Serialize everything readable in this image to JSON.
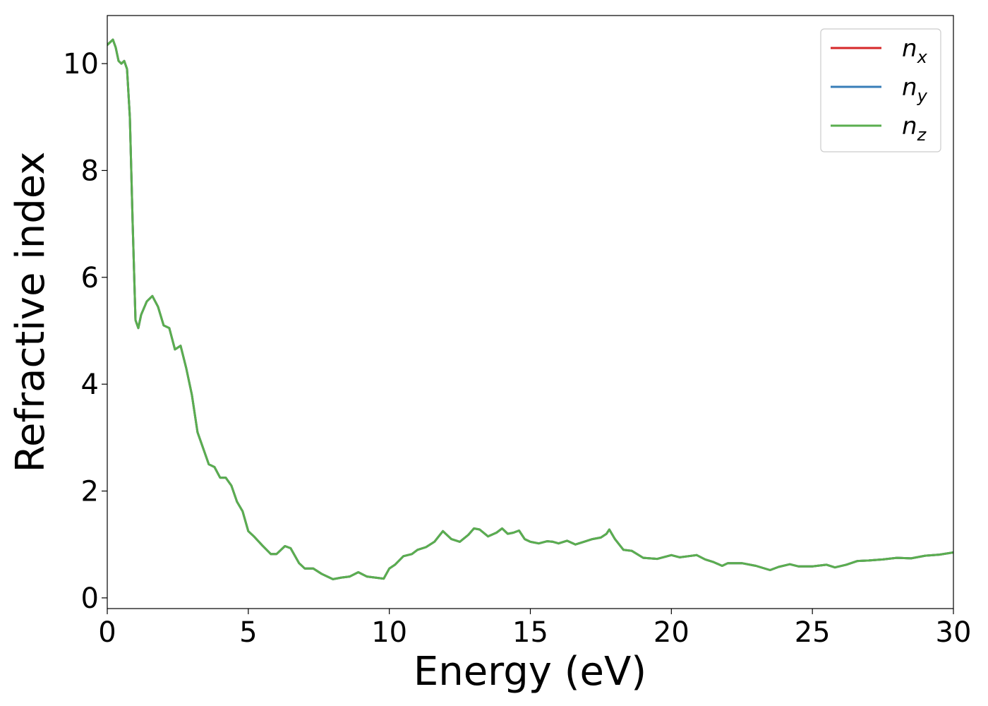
{
  "chart_data": {
    "type": "line",
    "title": "",
    "xlabel": "Energy (eV)",
    "ylabel": "Refractive index",
    "xlim": [
      0,
      30
    ],
    "ylim": [
      -0.2,
      10.9
    ],
    "xticks": [
      0,
      5,
      10,
      15,
      20,
      25,
      30
    ],
    "xtick_labels": [
      "0",
      "5",
      "10",
      "15",
      "20",
      "25",
      "30"
    ],
    "yticks": [
      0,
      2,
      4,
      6,
      8,
      10
    ],
    "ytick_labels": [
      "0",
      "2",
      "4",
      "6",
      "8",
      "10"
    ],
    "grid": false,
    "legend_position": "top-right",
    "x": [
      0,
      0.2,
      0.3,
      0.4,
      0.5,
      0.6,
      0.7,
      0.8,
      0.9,
      1.0,
      1.1,
      1.2,
      1.4,
      1.6,
      1.8,
      2.0,
      2.2,
      2.4,
      2.6,
      2.8,
      3.0,
      3.2,
      3.4,
      3.6,
      3.8,
      4.0,
      4.2,
      4.4,
      4.6,
      4.8,
      5.0,
      5.2,
      5.5,
      5.8,
      6.0,
      6.3,
      6.5,
      6.8,
      7.0,
      7.3,
      7.6,
      8.0,
      8.3,
      8.6,
      8.9,
      9.2,
      9.5,
      9.8,
      10.0,
      10.2,
      10.5,
      10.8,
      11.0,
      11.3,
      11.6,
      11.9,
      12.0,
      12.2,
      12.5,
      12.8,
      13.0,
      13.2,
      13.5,
      13.8,
      14.0,
      14.2,
      14.4,
      14.6,
      14.8,
      15.0,
      15.3,
      15.6,
      15.8,
      16.0,
      16.3,
      16.6,
      16.9,
      17.2,
      17.5,
      17.7,
      17.8,
      18.0,
      18.3,
      18.6,
      19.0,
      19.5,
      20.0,
      20.3,
      20.6,
      20.9,
      21.2,
      21.5,
      21.8,
      22.0,
      22.5,
      23.0,
      23.5,
      23.8,
      24.2,
      24.5,
      25.0,
      25.5,
      25.8,
      26.2,
      26.6,
      27.0,
      27.5,
      28.0,
      28.5,
      29.0,
      29.5,
      30.0
    ],
    "series": [
      {
        "name": "n_x",
        "label": "n",
        "subscript": "x",
        "color": "#d62728",
        "values": [
          10.35,
          10.45,
          10.3,
          10.05,
          10.0,
          10.05,
          9.9,
          9.0,
          7.0,
          5.2,
          5.05,
          5.3,
          5.55,
          5.65,
          5.45,
          5.1,
          5.05,
          4.65,
          4.72,
          4.3,
          3.8,
          3.1,
          2.8,
          2.5,
          2.45,
          2.25,
          2.25,
          2.1,
          1.8,
          1.62,
          1.25,
          1.15,
          0.98,
          0.82,
          0.82,
          0.97,
          0.93,
          0.65,
          0.55,
          0.55,
          0.45,
          0.35,
          0.38,
          0.4,
          0.48,
          0.4,
          0.38,
          0.36,
          0.55,
          0.62,
          0.78,
          0.82,
          0.9,
          0.95,
          1.05,
          1.25,
          1.2,
          1.1,
          1.05,
          1.18,
          1.3,
          1.28,
          1.15,
          1.22,
          1.3,
          1.2,
          1.22,
          1.26,
          1.1,
          1.05,
          1.02,
          1.06,
          1.05,
          1.02,
          1.07,
          1.0,
          1.05,
          1.1,
          1.13,
          1.2,
          1.28,
          1.1,
          0.9,
          0.88,
          0.75,
          0.73,
          0.8,
          0.76,
          0.78,
          0.8,
          0.72,
          0.67,
          0.6,
          0.65,
          0.65,
          0.6,
          0.52,
          0.58,
          0.63,
          0.59,
          0.59,
          0.62,
          0.57,
          0.62,
          0.69,
          0.7,
          0.72,
          0.75,
          0.74,
          0.79,
          0.81,
          0.85
        ]
      },
      {
        "name": "n_y",
        "label": "n",
        "subscript": "y",
        "color": "#377eb8",
        "values": [
          10.35,
          10.45,
          10.3,
          10.05,
          10.0,
          10.05,
          9.9,
          9.0,
          7.0,
          5.2,
          5.05,
          5.3,
          5.55,
          5.65,
          5.45,
          5.1,
          5.05,
          4.65,
          4.72,
          4.3,
          3.8,
          3.1,
          2.8,
          2.5,
          2.45,
          2.25,
          2.25,
          2.1,
          1.8,
          1.62,
          1.25,
          1.15,
          0.98,
          0.82,
          0.82,
          0.97,
          0.93,
          0.65,
          0.55,
          0.55,
          0.45,
          0.35,
          0.38,
          0.4,
          0.48,
          0.4,
          0.38,
          0.36,
          0.55,
          0.62,
          0.78,
          0.82,
          0.9,
          0.95,
          1.05,
          1.25,
          1.2,
          1.1,
          1.05,
          1.18,
          1.3,
          1.28,
          1.15,
          1.22,
          1.3,
          1.2,
          1.22,
          1.26,
          1.1,
          1.05,
          1.02,
          1.06,
          1.05,
          1.02,
          1.07,
          1.0,
          1.05,
          1.1,
          1.13,
          1.2,
          1.28,
          1.1,
          0.9,
          0.88,
          0.75,
          0.73,
          0.8,
          0.76,
          0.78,
          0.8,
          0.72,
          0.67,
          0.6,
          0.65,
          0.65,
          0.6,
          0.52,
          0.58,
          0.63,
          0.59,
          0.59,
          0.62,
          0.57,
          0.62,
          0.69,
          0.7,
          0.72,
          0.75,
          0.74,
          0.79,
          0.81,
          0.85
        ]
      },
      {
        "name": "n_z",
        "label": "n",
        "subscript": "z",
        "color": "#5aae4f",
        "values": [
          10.35,
          10.45,
          10.3,
          10.05,
          10.0,
          10.05,
          9.9,
          9.0,
          7.0,
          5.2,
          5.05,
          5.3,
          5.55,
          5.65,
          5.45,
          5.1,
          5.05,
          4.65,
          4.72,
          4.3,
          3.8,
          3.1,
          2.8,
          2.5,
          2.45,
          2.25,
          2.25,
          2.1,
          1.8,
          1.62,
          1.25,
          1.15,
          0.98,
          0.82,
          0.82,
          0.97,
          0.93,
          0.65,
          0.55,
          0.55,
          0.45,
          0.35,
          0.38,
          0.4,
          0.48,
          0.4,
          0.38,
          0.36,
          0.55,
          0.62,
          0.78,
          0.82,
          0.9,
          0.95,
          1.05,
          1.25,
          1.2,
          1.1,
          1.05,
          1.18,
          1.3,
          1.28,
          1.15,
          1.22,
          1.3,
          1.2,
          1.22,
          1.26,
          1.1,
          1.05,
          1.02,
          1.06,
          1.05,
          1.02,
          1.07,
          1.0,
          1.05,
          1.1,
          1.13,
          1.2,
          1.28,
          1.1,
          0.9,
          0.88,
          0.75,
          0.73,
          0.8,
          0.76,
          0.78,
          0.8,
          0.72,
          0.67,
          0.6,
          0.65,
          0.65,
          0.6,
          0.52,
          0.58,
          0.63,
          0.59,
          0.59,
          0.62,
          0.57,
          0.62,
          0.69,
          0.7,
          0.72,
          0.75,
          0.74,
          0.79,
          0.81,
          0.85
        ]
      }
    ]
  }
}
